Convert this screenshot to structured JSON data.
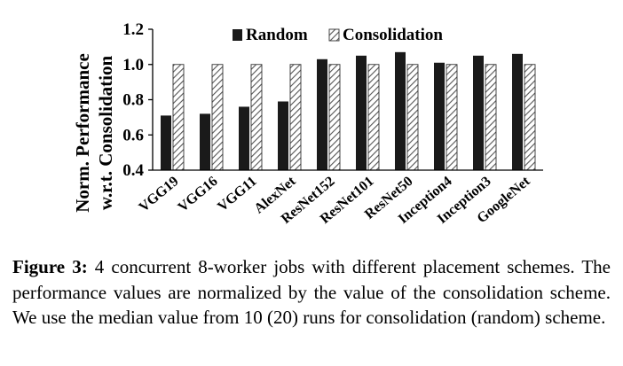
{
  "chart_data": {
    "type": "bar",
    "ylabel": "Norm. Performance w.r.t. Consolidation",
    "ylabel_lines": [
      "Norm. Performance",
      "w.r.t. Consolidation"
    ],
    "ylim": [
      0.4,
      1.2
    ],
    "yticks": [
      "0.4",
      "0.6",
      "0.8",
      "1.0",
      "1.2"
    ],
    "grid": false,
    "legend_position": "top",
    "categories": [
      "VGG19",
      "VGG16",
      "VGG11",
      "AlexNet",
      "ResNet152",
      "ResNet101",
      "ResNet50",
      "Inception4",
      "Inception3",
      "GoogleNet"
    ],
    "series": [
      {
        "name": "Random",
        "color": "#1a1a1a",
        "fill": "solid",
        "values": [
          0.71,
          0.72,
          0.76,
          0.79,
          1.03,
          1.05,
          1.07,
          1.01,
          1.05,
          1.06
        ]
      },
      {
        "name": "Consolidation",
        "color": "#ffffff",
        "fill": "diagonal-hatch",
        "values": [
          1.0,
          1.0,
          1.0,
          1.0,
          1.0,
          1.0,
          1.0,
          1.0,
          1.0,
          1.0
        ]
      }
    ]
  },
  "caption": {
    "label": "Figure 3:",
    "text": " 4 concurrent 8-worker jobs with different placement schemes. The performance values are normalized by the value of the consolidation scheme. We use the median value from 10 (20) runs for consolidation (random) scheme."
  }
}
